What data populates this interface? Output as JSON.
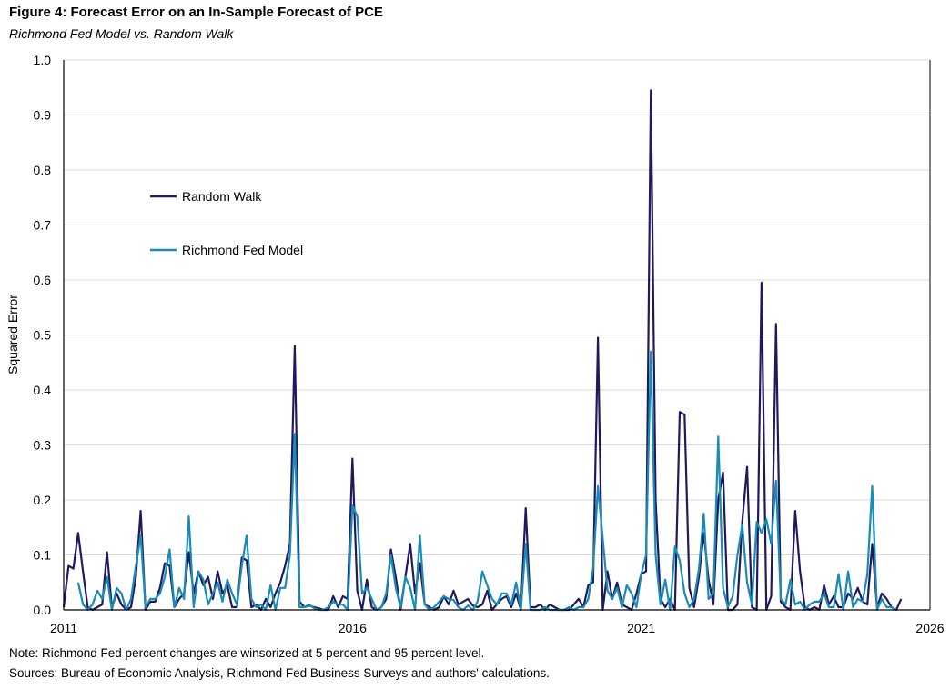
{
  "chart_data": {
    "type": "line",
    "title": "Figure 4: Forecast Error on an In-Sample Forecast of PCE",
    "subtitle": "Richmond Fed Model vs. Random Walk",
    "xlabel": "",
    "ylabel": "Squared Error",
    "xlim": [
      "2011-01",
      "2026-01"
    ],
    "ylim": [
      0,
      1.0
    ],
    "x_ticks": [
      "2011",
      "2016",
      "2021",
      "2026"
    ],
    "y_ticks": [
      "0.0",
      "0.1",
      "0.2",
      "0.3",
      "0.4",
      "0.5",
      "0.6",
      "0.7",
      "0.8",
      "0.9",
      "1.0"
    ],
    "grid": "horizontal",
    "legend_placement": "top-left",
    "x": [
      "2011-01",
      "2011-02",
      "2011-03",
      "2011-04",
      "2011-05",
      "2011-06",
      "2011-07",
      "2011-08",
      "2011-09",
      "2011-10",
      "2011-11",
      "2011-12",
      "2012-01",
      "2012-02",
      "2012-03",
      "2012-04",
      "2012-05",
      "2012-06",
      "2012-07",
      "2012-08",
      "2012-09",
      "2012-10",
      "2012-11",
      "2012-12",
      "2013-01",
      "2013-02",
      "2013-03",
      "2013-04",
      "2013-05",
      "2013-06",
      "2013-07",
      "2013-08",
      "2013-09",
      "2013-10",
      "2013-11",
      "2013-12",
      "2014-01",
      "2014-02",
      "2014-03",
      "2014-04",
      "2014-05",
      "2014-06",
      "2014-07",
      "2014-08",
      "2014-09",
      "2014-10",
      "2014-11",
      "2014-12",
      "2015-01",
      "2015-02",
      "2015-03",
      "2015-04",
      "2015-05",
      "2015-06",
      "2015-07",
      "2015-08",
      "2015-09",
      "2015-10",
      "2015-11",
      "2015-12",
      "2016-01",
      "2016-02",
      "2016-03",
      "2016-04",
      "2016-05",
      "2016-06",
      "2016-07",
      "2016-08",
      "2016-09",
      "2016-10",
      "2016-11",
      "2016-12",
      "2017-01",
      "2017-02",
      "2017-03",
      "2017-04",
      "2017-05",
      "2017-06",
      "2017-07",
      "2017-08",
      "2017-09",
      "2017-10",
      "2017-11",
      "2017-12",
      "2018-01",
      "2018-02",
      "2018-03",
      "2018-04",
      "2018-05",
      "2018-06",
      "2018-07",
      "2018-08",
      "2018-09",
      "2018-10",
      "2018-11",
      "2018-12",
      "2019-01",
      "2019-02",
      "2019-03",
      "2019-04",
      "2019-05",
      "2019-06",
      "2019-07",
      "2019-08",
      "2019-09",
      "2019-10",
      "2019-11",
      "2019-12",
      "2020-01",
      "2020-02",
      "2020-03",
      "2020-04",
      "2020-05",
      "2020-06",
      "2020-07",
      "2020-08",
      "2020-09",
      "2020-10",
      "2020-11",
      "2020-12",
      "2021-01",
      "2021-02",
      "2021-03",
      "2021-04",
      "2021-05",
      "2021-06",
      "2021-07",
      "2021-08",
      "2021-09",
      "2021-10",
      "2021-11",
      "2021-12",
      "2022-01",
      "2022-02",
      "2022-03",
      "2022-04",
      "2022-05",
      "2022-06",
      "2022-07",
      "2022-08",
      "2022-09",
      "2022-10",
      "2022-11",
      "2022-12",
      "2023-01",
      "2023-02",
      "2023-03",
      "2023-04",
      "2023-05",
      "2023-06",
      "2023-07",
      "2023-08",
      "2023-09",
      "2023-10",
      "2023-11",
      "2023-12",
      "2024-01",
      "2024-02",
      "2024-03",
      "2024-04",
      "2024-05",
      "2024-06",
      "2024-07",
      "2024-08",
      "2024-09",
      "2024-10",
      "2024-11",
      "2024-12",
      "2025-01",
      "2025-02",
      "2025-03",
      "2025-04",
      "2025-05",
      "2025-06",
      "2025-07"
    ],
    "series": [
      {
        "name": "Random Walk",
        "color": "#1f1a5e",
        "values": [
          0.005,
          0.08,
          0.075,
          0.14,
          0.07,
          0.005,
          0.0,
          0.005,
          0.01,
          0.105,
          0.005,
          0.03,
          0.01,
          0.0,
          0.005,
          0.06,
          0.18,
          0.0,
          0.015,
          0.015,
          0.04,
          0.085,
          0.08,
          0.005,
          0.02,
          0.03,
          0.105,
          0.03,
          0.07,
          0.045,
          0.06,
          0.02,
          0.07,
          0.03,
          0.045,
          0.005,
          0.005,
          0.095,
          0.09,
          0.005,
          0.01,
          0.0,
          0.02,
          0.005,
          0.03,
          0.05,
          0.08,
          0.12,
          0.48,
          0.015,
          0.005,
          0.008,
          0.005,
          0.003,
          0.0,
          0.0,
          0.025,
          0.005,
          0.025,
          0.02,
          0.275,
          0.035,
          0.0,
          0.055,
          0.005,
          0.0,
          0.005,
          0.02,
          0.11,
          0.06,
          0.0,
          0.06,
          0.12,
          0.03,
          0.085,
          0.01,
          0.005,
          0.0,
          0.005,
          0.025,
          0.01,
          0.035,
          0.01,
          0.015,
          0.02,
          0.008,
          0.005,
          0.01,
          0.035,
          0.0,
          0.01,
          0.02,
          0.025,
          0.005,
          0.03,
          0.0,
          0.185,
          0.005,
          0.005,
          0.01,
          0.0,
          0.01,
          0.005,
          0.0,
          0.0,
          0.0,
          0.01,
          0.02,
          0.005,
          0.045,
          0.05,
          0.495,
          0.0,
          0.07,
          0.02,
          0.05,
          0.01,
          0.005,
          0.0,
          0.03,
          0.065,
          0.07,
          0.945,
          0.2,
          0.02,
          0.005,
          0.02,
          0.0,
          0.36,
          0.355,
          0.04,
          0.005,
          0.06,
          0.14,
          0.055,
          0.01,
          0.2,
          0.25,
          0.0,
          0.0,
          0.01,
          0.16,
          0.26,
          0.005,
          0.0,
          0.595,
          0.0,
          0.025,
          0.52,
          0.015,
          0.005,
          0.0,
          0.18,
          0.07,
          0.005,
          0.0,
          0.005,
          0.0,
          0.045,
          0.01,
          0.025,
          0.005,
          0.005,
          0.03,
          0.02,
          0.04,
          0.015,
          0.01,
          0.12,
          0.005,
          0.03,
          0.02,
          0.005,
          0.0,
          0.02
        ]
      },
      {
        "name": "Richmond Fed Model",
        "color": "#1a8bb5",
        "values": [
          null,
          null,
          null,
          0.05,
          0.01,
          0.0,
          0.01,
          0.035,
          0.02,
          0.06,
          0.0,
          0.04,
          0.03,
          0.0,
          0.02,
          0.08,
          0.135,
          0.005,
          0.02,
          0.02,
          0.03,
          0.06,
          0.11,
          0.005,
          0.04,
          0.02,
          0.17,
          0.005,
          0.07,
          0.055,
          0.01,
          0.03,
          0.05,
          0.015,
          0.055,
          0.03,
          0.01,
          0.08,
          0.135,
          0.02,
          0.005,
          0.01,
          0.0,
          0.045,
          0.0,
          0.04,
          0.04,
          0.1,
          0.32,
          0.005,
          0.005,
          0.01,
          0.003,
          0.0,
          0.0,
          0.005,
          0.015,
          0.01,
          0.01,
          0.0,
          0.19,
          0.17,
          0.03,
          0.04,
          0.02,
          0.0,
          0.005,
          0.03,
          0.1,
          0.04,
          0.005,
          0.06,
          0.04,
          0.0,
          0.135,
          0.01,
          0.0,
          0.005,
          0.015,
          0.025,
          0.02,
          0.018,
          0.005,
          0.0,
          0.008,
          0.0,
          0.015,
          0.07,
          0.045,
          0.02,
          0.01,
          0.03,
          0.03,
          0.01,
          0.05,
          0.0,
          0.12,
          0.0,
          0.0,
          0.0,
          0.005,
          0.0,
          0.0,
          0.0,
          0.0,
          0.005,
          0.0,
          0.005,
          0.005,
          0.02,
          0.075,
          0.225,
          0.13,
          0.035,
          0.02,
          0.04,
          0.005,
          0.045,
          0.03,
          0.005,
          0.065,
          0.1,
          0.47,
          0.1,
          0.01,
          0.055,
          0.0,
          0.115,
          0.09,
          0.03,
          0.005,
          0.02,
          0.075,
          0.175,
          0.02,
          0.03,
          0.315,
          0.04,
          0.005,
          0.025,
          0.1,
          0.155,
          0.05,
          0.01,
          0.16,
          0.14,
          0.165,
          0.12,
          0.235,
          0.02,
          0.01,
          0.055,
          0.01,
          0.015,
          0.0,
          0.01,
          0.015,
          0.015,
          0.03,
          0.005,
          0.005,
          0.065,
          0.0,
          0.07,
          0.005,
          0.02,
          0.015,
          0.065,
          0.225,
          0.0,
          0.02,
          0.005,
          0.005,
          0.0,
          null
        ]
      }
    ]
  },
  "notes": {
    "note": "Note: Richmond Fed percent changes are winsorized at 5 percent and 95 percent level.",
    "sources": "Sources: Bureau of Economic Analysis, Richmond Fed Business Surveys and authors' calculations."
  }
}
